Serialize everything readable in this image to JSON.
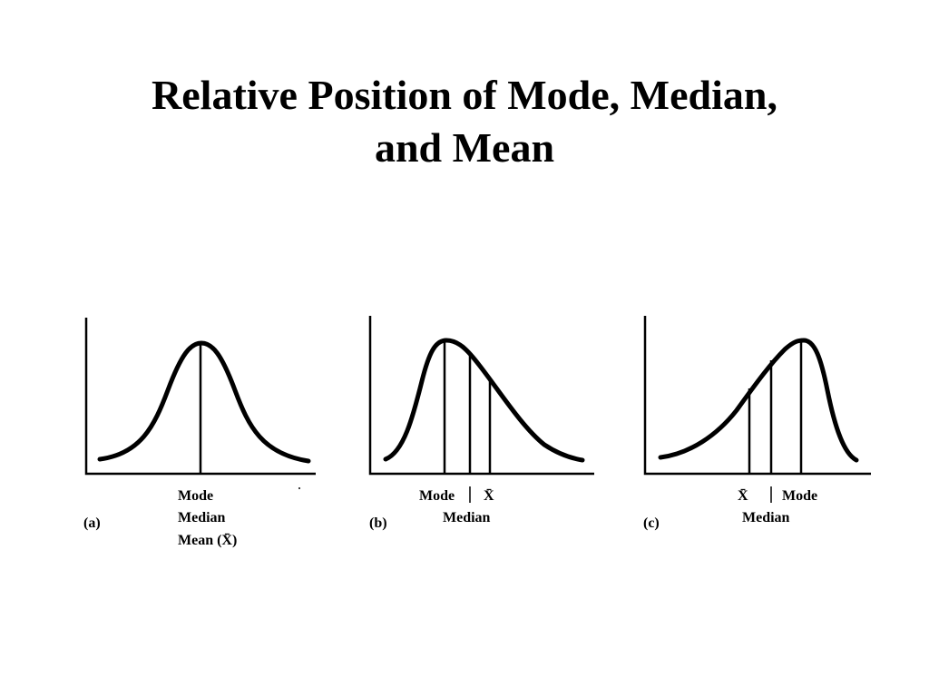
{
  "title": {
    "line1": "Relative Position of Mode, Median,",
    "line2": "and Mean"
  },
  "panels": [
    {
      "label": "(a)",
      "shape": "symmetric",
      "measure_labels": [
        "Mode",
        "Median",
        "Mean (X̄)"
      ]
    },
    {
      "label": "(b)",
      "shape": "right-skewed",
      "measure_labels": [
        "Mode",
        "X̄",
        "Median"
      ]
    },
    {
      "label": "(c)",
      "shape": "left-skewed",
      "measure_labels": [
        "X̄",
        "Mode",
        "Median"
      ]
    }
  ]
}
